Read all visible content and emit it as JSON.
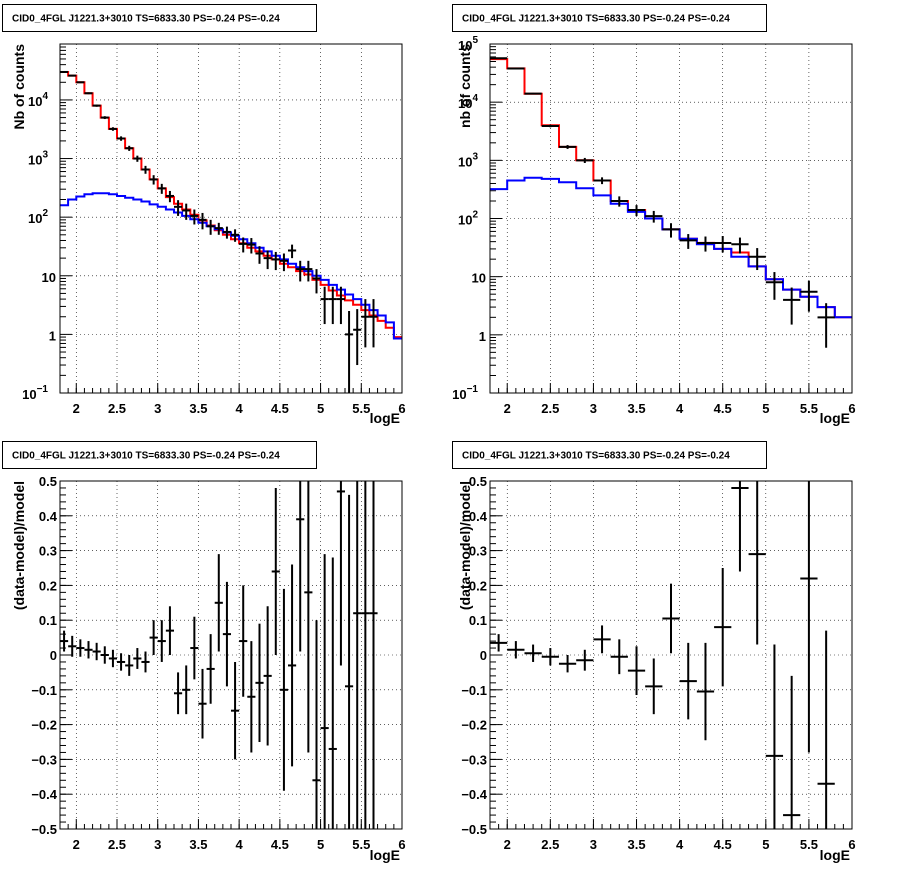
{
  "chart_data": [
    {
      "type": "line",
      "title": "CID0_4FGL J1221.3+3010 TS=6833.30 PS=-0.24 PS=-0.24",
      "xlabel": "logE",
      "ylabel": "Nb of counts",
      "xlim": [
        1.8,
        6.0
      ],
      "ylim": [
        0.1,
        90000
      ],
      "yscale": "log",
      "grid": true,
      "x_ticks": [
        "2",
        "2.5",
        "3",
        "3.5",
        "4",
        "4.5",
        "5",
        "5.5",
        "6"
      ],
      "y_ticks": [
        {
          "value": 0.1,
          "label": "10",
          "sup": "−1"
        },
        {
          "value": 1,
          "label": "1",
          "sup": ""
        },
        {
          "value": 10,
          "label": "10",
          "sup": ""
        },
        {
          "value": 100,
          "label": "10",
          "sup": "2"
        },
        {
          "value": 1000,
          "label": "10",
          "sup": "3"
        },
        {
          "value": 10000,
          "label": "10",
          "sup": "4"
        }
      ],
      "bin_edges": [
        1.8,
        1.9,
        2.0,
        2.1,
        2.2,
        2.3,
        2.4,
        2.5,
        2.6,
        2.7,
        2.8,
        2.9,
        3.0,
        3.1,
        3.2,
        3.3,
        3.4,
        3.5,
        3.6,
        3.7,
        3.8,
        3.9,
        4.0,
        4.1,
        4.2,
        4.3,
        4.4,
        4.5,
        4.6,
        4.7,
        4.8,
        4.9,
        5.0,
        5.1,
        5.2,
        5.3,
        5.4,
        5.5,
        5.6,
        5.7,
        5.8,
        5.9,
        6.0
      ],
      "series": [
        {
          "color": "#ff0000",
          "style": "step",
          "values": [
            30000,
            26000,
            20000,
            13000,
            8000,
            5000,
            3200,
            2200,
            1500,
            1000,
            650,
            440,
            310,
            220,
            170,
            135,
            110,
            88,
            72,
            60,
            50,
            42,
            36,
            30,
            26,
            22,
            19,
            16,
            14,
            12,
            10.5,
            8.5,
            7,
            5.6,
            4.6,
            3.8,
            3.2,
            2.6,
            2.1,
            1.7,
            1.3,
            0.9
          ]
        },
        {
          "color": "#0000ff",
          "style": "step",
          "values": [
            160,
            200,
            225,
            245,
            255,
            255,
            245,
            230,
            215,
            200,
            185,
            165,
            150,
            135,
            120,
            105,
            92,
            80,
            70,
            62,
            55,
            48,
            42,
            36,
            30,
            26,
            22,
            19,
            16,
            14,
            12,
            10,
            8.5,
            7,
            5.8,
            4.8,
            4,
            3.2,
            2.6,
            2.1,
            1.6,
            0.85
          ]
        },
        {
          "color": "#000000",
          "style": "points",
          "x": [
            1.85,
            1.95,
            2.05,
            2.15,
            2.25,
            2.35,
            2.45,
            2.55,
            2.65,
            2.75,
            2.85,
            2.95,
            3.05,
            3.15,
            3.25,
            3.35,
            3.45,
            3.55,
            3.65,
            3.75,
            3.85,
            3.95,
            4.05,
            4.15,
            4.25,
            4.35,
            4.45,
            4.55,
            4.65,
            4.75,
            4.85,
            4.95,
            5.05,
            5.15,
            5.25,
            5.35,
            5.45,
            5.55,
            5.65
          ],
          "values": [
            30000,
            26000,
            20000,
            13000,
            8000,
            5000,
            3200,
            2200,
            1500,
            1000,
            650,
            440,
            310,
            230,
            150,
            130,
            105,
            90,
            70,
            65,
            56,
            50,
            35,
            34,
            24,
            20,
            19,
            18,
            27,
            13,
            13,
            9,
            4,
            4,
            4,
            1,
            1.2,
            2,
            2
          ],
          "yerr_lo": [
            800,
            700,
            600,
            450,
            350,
            280,
            220,
            190,
            150,
            120,
            100,
            80,
            60,
            50,
            45,
            40,
            30,
            28,
            20,
            15,
            13,
            12,
            10,
            10,
            8,
            7,
            6.5,
            6,
            7,
            5,
            5,
            4,
            2.5,
            2.5,
            2.5,
            0.9,
            0.9,
            1.4,
            1.4
          ],
          "yerr_hi": [
            800,
            700,
            600,
            450,
            350,
            280,
            220,
            190,
            150,
            120,
            100,
            80,
            60,
            50,
            45,
            40,
            30,
            28,
            20,
            15,
            13,
            12,
            10,
            10,
            8,
            7,
            6.5,
            6,
            7,
            5,
            5,
            4,
            2.5,
            2.5,
            2.5,
            1.5,
            1.5,
            2,
            2
          ]
        }
      ]
    },
    {
      "type": "line",
      "title": "CID0_4FGL J1221.3+3010 TS=6833.30 PS=-0.24 PS=-0.24",
      "xlabel": "logE",
      "ylabel": "nb of counts",
      "xlim": [
        1.8,
        6.0
      ],
      "ylim": [
        0.1,
        100000
      ],
      "yscale": "log",
      "grid": true,
      "x_ticks": [
        "2",
        "2.5",
        "3",
        "3.5",
        "4",
        "4.5",
        "5",
        "5.5",
        "6"
      ],
      "y_ticks": [
        {
          "value": 0.1,
          "label": "10",
          "sup": "−1"
        },
        {
          "value": 1,
          "label": "1",
          "sup": ""
        },
        {
          "value": 10,
          "label": "10",
          "sup": ""
        },
        {
          "value": 100,
          "label": "10",
          "sup": "2"
        },
        {
          "value": 1000,
          "label": "10",
          "sup": "3"
        },
        {
          "value": 10000,
          "label": "10",
          "sup": "4"
        },
        {
          "value": 100000,
          "label": "10",
          "sup": "5"
        }
      ],
      "bin_edges": [
        1.8,
        2.0,
        2.2,
        2.4,
        2.6,
        2.8,
        3.0,
        3.2,
        3.4,
        3.6,
        3.8,
        4.0,
        4.2,
        4.4,
        4.6,
        4.8,
        5.0,
        5.2,
        5.4,
        5.6,
        5.8,
        6.0
      ],
      "series": [
        {
          "color": "#ff0000",
          "style": "step",
          "values": [
            55000,
            38000,
            14000,
            4000,
            1700,
            1000,
            450,
            200,
            140,
            100,
            65,
            45,
            38,
            30,
            26,
            15,
            9,
            6,
            4.5,
            3,
            2
          ]
        },
        {
          "color": "#0000ff",
          "style": "step",
          "values": [
            320,
            450,
            500,
            480,
            420,
            330,
            250,
            180,
            130,
            100,
            65,
            45,
            36,
            30,
            22,
            15,
            9,
            6,
            4.5,
            3,
            2
          ]
        },
        {
          "color": "#000000",
          "style": "points",
          "x": [
            1.9,
            2.1,
            2.3,
            2.5,
            2.7,
            2.9,
            3.1,
            3.3,
            3.5,
            3.7,
            3.9,
            4.1,
            4.3,
            4.5,
            4.7,
            4.9,
            5.1,
            5.3,
            5.5,
            5.7
          ],
          "values": [
            57000,
            38000,
            14000,
            3900,
            1700,
            1000,
            450,
            200,
            140,
            110,
            65,
            42,
            38,
            38,
            36,
            22,
            8,
            4,
            5.5,
            2
          ],
          "yerr_lo": [
            900,
            700,
            400,
            200,
            130,
            100,
            60,
            40,
            30,
            25,
            18,
            12,
            11,
            12,
            11,
            9,
            4,
            2.5,
            3,
            1.4
          ],
          "yerr_hi": [
            900,
            700,
            400,
            200,
            130,
            100,
            60,
            40,
            30,
            25,
            18,
            12,
            11,
            12,
            11,
            9,
            4,
            2.5,
            3,
            1.5
          ]
        }
      ]
    },
    {
      "type": "scatter",
      "title": "CID0_4FGL J1221.3+3010 TS=6833.30 PS=-0.24 PS=-0.24",
      "xlabel": "logE",
      "ylabel": "(data-model)/model",
      "xlim": [
        1.8,
        6.0
      ],
      "ylim": [
        -0.5,
        0.5
      ],
      "grid": true,
      "x_ticks": [
        "2",
        "2.5",
        "3",
        "3.5",
        "4",
        "4.5",
        "5",
        "5.5",
        "6"
      ],
      "y_ticks": [
        "−0.5",
        "−0.4",
        "−0.3",
        "−0.2",
        "−0.1",
        "0",
        "0.1",
        "0.2",
        "0.3",
        "0.4",
        "0.5"
      ],
      "xerr": 0.05,
      "series": [
        {
          "color": "#000000",
          "x": [
            1.85,
            1.95,
            2.05,
            2.15,
            2.25,
            2.35,
            2.45,
            2.55,
            2.65,
            2.75,
            2.85,
            2.95,
            3.05,
            3.15,
            3.25,
            3.35,
            3.45,
            3.55,
            3.65,
            3.75,
            3.85,
            3.95,
            4.05,
            4.15,
            4.25,
            4.35,
            4.45,
            4.55,
            4.65,
            4.75,
            4.85,
            4.95,
            5.05,
            5.15,
            5.25,
            5.35,
            5.45,
            5.55,
            5.65
          ],
          "values": [
            0.04,
            0.025,
            0.02,
            0.015,
            0.01,
            0.0,
            -0.01,
            -0.02,
            -0.03,
            -0.01,
            -0.02,
            0.05,
            0.04,
            0.07,
            -0.11,
            -0.1,
            0.02,
            -0.14,
            -0.04,
            0.15,
            0.06,
            -0.16,
            0.04,
            -0.12,
            -0.08,
            -0.06,
            0.24,
            -0.1,
            -0.03,
            0.39,
            0.18,
            -0.36,
            -0.21,
            -0.27,
            0.47,
            -0.09,
            0.12,
            0.12,
            0.12
          ],
          "yerr": [
            0.03,
            0.03,
            0.025,
            0.025,
            0.025,
            0.025,
            0.025,
            0.025,
            0.03,
            0.03,
            0.03,
            0.05,
            0.06,
            0.07,
            0.06,
            0.07,
            0.09,
            0.1,
            0.1,
            0.14,
            0.15,
            0.14,
            0.16,
            0.16,
            0.17,
            0.2,
            0.24,
            0.29,
            0.29,
            0.38,
            0.46,
            0.46,
            0.5,
            0.55,
            0.5,
            0.55,
            0.7,
            0.7,
            0.7
          ]
        }
      ]
    },
    {
      "type": "scatter",
      "title": "CID0_4FGL J1221.3+3010 TS=6833.30 PS=-0.24 PS=-0.24",
      "xlabel": "logE",
      "ylabel": "(data-model)/model",
      "xlim": [
        1.8,
        6.0
      ],
      "ylim": [
        -0.5,
        0.5
      ],
      "grid": true,
      "x_ticks": [
        "2",
        "2.5",
        "3",
        "3.5",
        "4",
        "4.5",
        "5",
        "5.5",
        "6"
      ],
      "y_ticks": [
        "−0.5",
        "−0.4",
        "−0.3",
        "−0.2",
        "−0.1",
        "0",
        "0.1",
        "0.2",
        "0.3",
        "0.4",
        "0.5"
      ],
      "xerr": 0.1,
      "series": [
        {
          "color": "#000000",
          "x": [
            1.9,
            2.1,
            2.3,
            2.5,
            2.7,
            2.9,
            3.1,
            3.3,
            3.5,
            3.7,
            3.9,
            4.1,
            4.3,
            4.5,
            4.7,
            4.9,
            5.1,
            5.3,
            5.5,
            5.7
          ],
          "values": [
            0.035,
            0.015,
            0.005,
            -0.005,
            -0.025,
            -0.015,
            0.045,
            -0.005,
            -0.045,
            -0.09,
            0.105,
            -0.075,
            -0.105,
            0.08,
            0.48,
            0.29,
            -0.29,
            -0.46,
            0.22,
            -0.37
          ],
          "yerr": [
            0.025,
            0.025,
            0.025,
            0.025,
            0.025,
            0.03,
            0.04,
            0.05,
            0.07,
            0.08,
            0.1,
            0.11,
            0.14,
            0.17,
            0.24,
            0.26,
            0.32,
            0.4,
            0.5,
            0.44
          ]
        }
      ]
    }
  ]
}
